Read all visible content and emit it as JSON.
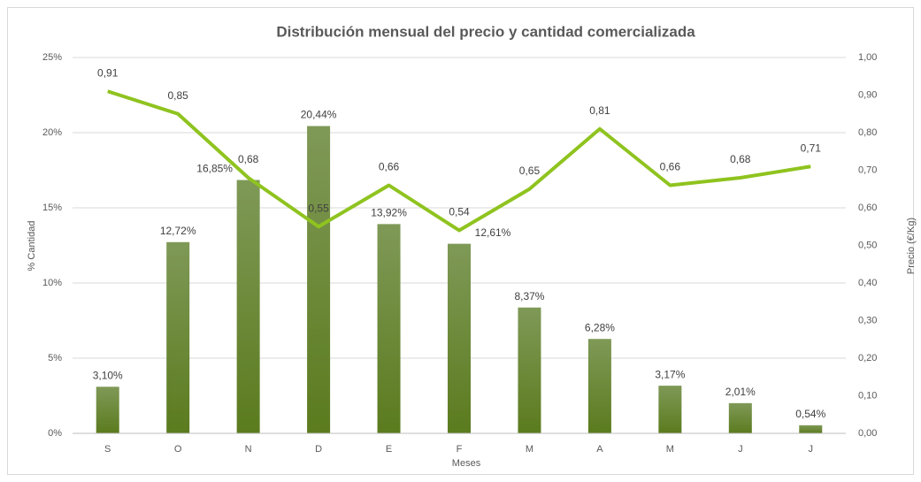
{
  "chart_data": {
    "type": "combo",
    "title": "Distribución  mensual del precio y cantidad comercializada",
    "x_label": "Meses",
    "y_label": "% Cantidad",
    "y2_label": "Precio (€/Kg)",
    "categories": [
      "S",
      "O",
      "N",
      "D",
      "E",
      "F",
      "M",
      "A",
      "M",
      "J",
      "J"
    ],
    "series": [
      {
        "name": "% Cantidad",
        "kind": "bar",
        "color": "#6b8a34",
        "values": [
          3.1,
          12.72,
          16.85,
          20.44,
          13.92,
          12.61,
          8.37,
          6.28,
          3.17,
          2.01,
          0.54
        ],
        "value_labels": [
          "3,10%",
          "12,72%",
          "16,85%",
          "20,44%",
          "13,92%",
          "12,61%",
          "8,37%",
          "6,28%",
          "3,17%",
          "2,01%",
          "0,54%"
        ]
      },
      {
        "name": "Precio (€/Kg)",
        "kind": "line",
        "axis": "y2",
        "color": "#8fc31f",
        "values": [
          0.91,
          0.85,
          0.68,
          0.55,
          0.66,
          0.54,
          0.65,
          0.81,
          0.66,
          0.68,
          0.71
        ],
        "value_labels": [
          "0,91",
          "0,85",
          "0,68",
          "0,55",
          "0,66",
          "0,54",
          "0,65",
          "0,81",
          "0,66",
          "0,68",
          "0,71"
        ]
      }
    ],
    "ylim": [
      0,
      25
    ],
    "yticks": [
      {
        "value": 0,
        "label": "0%"
      },
      {
        "value": 5,
        "label": "5%"
      },
      {
        "value": 10,
        "label": "10%"
      },
      {
        "value": 15,
        "label": "15%"
      },
      {
        "value": 20,
        "label": "20%"
      },
      {
        "value": 25,
        "label": "25%"
      }
    ],
    "y2lim": [
      0,
      1
    ],
    "y2ticks": [
      {
        "value": 0,
        "label": "0,00"
      },
      {
        "value": 0.1,
        "label": "0,10"
      },
      {
        "value": 0.2,
        "label": "0,20"
      },
      {
        "value": 0.3,
        "label": "0,30"
      },
      {
        "value": 0.4,
        "label": "0,40"
      },
      {
        "value": 0.5,
        "label": "0,50"
      },
      {
        "value": 0.6,
        "label": "0,60"
      },
      {
        "value": 0.7,
        "label": "0,70"
      },
      {
        "value": 0.8,
        "label": "0,80"
      },
      {
        "value": 0.9,
        "label": "0,90"
      },
      {
        "value": 1,
        "label": "1,00"
      }
    ],
    "grid": true
  }
}
